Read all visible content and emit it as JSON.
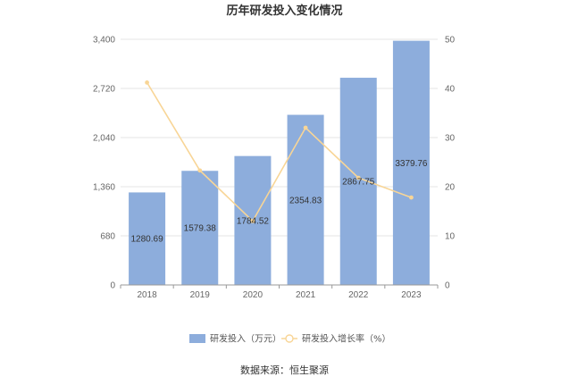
{
  "chart_data": {
    "type": "bar",
    "title": "历年研发投入变化情况",
    "categories": [
      "2018",
      "2019",
      "2020",
      "2021",
      "2022",
      "2023"
    ],
    "series": [
      {
        "name": "研发投入（万元）",
        "type": "bar",
        "axis": "left",
        "values": [
          1280.69,
          1579.38,
          1784.52,
          2354.83,
          2867.75,
          3379.76
        ],
        "labels": [
          "1280.69",
          "1579.38",
          "1784.52",
          "2354.83",
          "2867.75",
          "3379.76"
        ]
      },
      {
        "name": "研发投入增长率（%）",
        "type": "line",
        "axis": "right",
        "values": [
          41.2,
          23.3,
          13.0,
          32.0,
          21.8,
          17.8
        ]
      }
    ],
    "y_left": {
      "min": 0,
      "max": 3400,
      "ticks": [
        "0",
        "680",
        "1,360",
        "2,040",
        "2,720",
        "3,400"
      ]
    },
    "y_right": {
      "min": 0,
      "max": 50,
      "ticks": [
        "0",
        "10",
        "20",
        "30",
        "40",
        "50"
      ]
    },
    "grid": true,
    "legend_position": "bottom",
    "colors": {
      "bar": "#8daddc",
      "line": "#f8d596",
      "grid": "#e6e6e6",
      "axis": "#999999"
    }
  },
  "source": "数据来源：恒生聚源"
}
